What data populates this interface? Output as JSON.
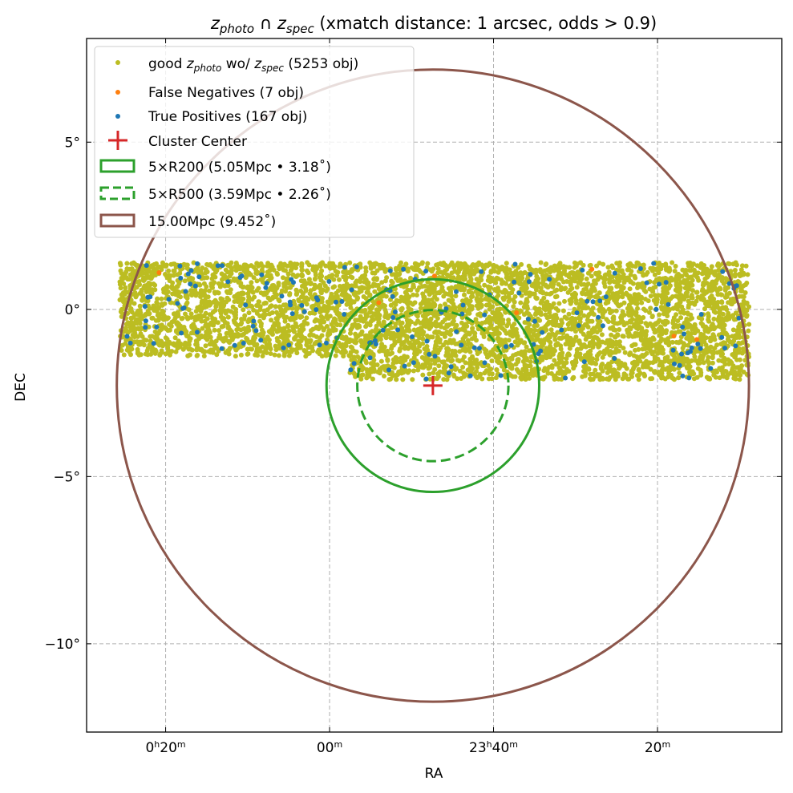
{
  "chart_data": {
    "type": "scatter",
    "title": {
      "z1": "z",
      "s1": "photo",
      "cap": " ∩ ",
      "z2": "z",
      "s2": "spec",
      "rest": " (xmatch distance: 1 arcsec, odds > 0.9)"
    },
    "xlabel": "RA",
    "ylabel": "DEC",
    "xlim_deg_offset": [
      7.41,
      -13.79
    ],
    "ylim": [
      -12.64,
      8.1
    ],
    "grid": true,
    "x_ticks": [
      {
        "value": 5,
        "label": "0h20m"
      },
      {
        "value": 0,
        "label": "00m"
      },
      {
        "value": -5,
        "label": "23h40m"
      },
      {
        "value": -10,
        "label": "20m"
      }
    ],
    "y_ticks": [
      {
        "value": 5,
        "label": "5°"
      },
      {
        "value": 0,
        "label": "0°"
      },
      {
        "value": -5,
        "label": "−5°"
      },
      {
        "value": -10,
        "label": "−10°"
      }
    ],
    "legend_placement": "top-left",
    "series": [
      {
        "name": "good_zphoto",
        "label_pre": "good ",
        "label_z1": "z",
        "label_s1": "photo",
        "label_mid": " wo/ ",
        "label_z2": "z",
        "label_s2": "spec",
        "label_post": " (5253 obj)",
        "count": 5253,
        "color": "#bcbd22",
        "regions": [
          {
            "ra": [
              6.4,
              -12.8
            ],
            "dec": [
              -1.4,
              1.4
            ]
          },
          {
            "ra": [
              -0.6,
              -12.8
            ],
            "dec": [
              -2.1,
              -1.4
            ]
          }
        ]
      },
      {
        "name": "False Negatives",
        "label": "False Negatives (7 obj)",
        "count": 7,
        "color": "#ff7f0e",
        "points": [
          [
            5.2,
            1.1
          ],
          [
            -3.2,
            1.0
          ],
          [
            -5.7,
            -0.1
          ],
          [
            -10.5,
            -0.8
          ],
          [
            -11.2,
            -0.9
          ],
          [
            -1.5,
            0.2
          ],
          [
            -8.0,
            1.2
          ]
        ]
      },
      {
        "name": "True Positives",
        "label": "True Positives (167 obj)",
        "count": 167,
        "color": "#1f77b4"
      }
    ],
    "cluster_center": {
      "label": "Cluster Center",
      "ra": -3.15,
      "dec": -2.28,
      "color": "#d62728"
    },
    "circles": [
      {
        "label": "5×R200 (5.05Mpc • 3.18˚)",
        "radius_deg": 3.18,
        "style": "solid",
        "color": "#2ca02c"
      },
      {
        "label": "5×R500 (3.59Mpc • 2.26˚)",
        "radius_deg": 2.26,
        "style": "dashed",
        "color": "#2ca02c"
      },
      {
        "label": "15.00Mpc (9.452˚)",
        "radius_deg": 9.452,
        "style": "solid",
        "color": "#8c564b"
      }
    ]
  }
}
